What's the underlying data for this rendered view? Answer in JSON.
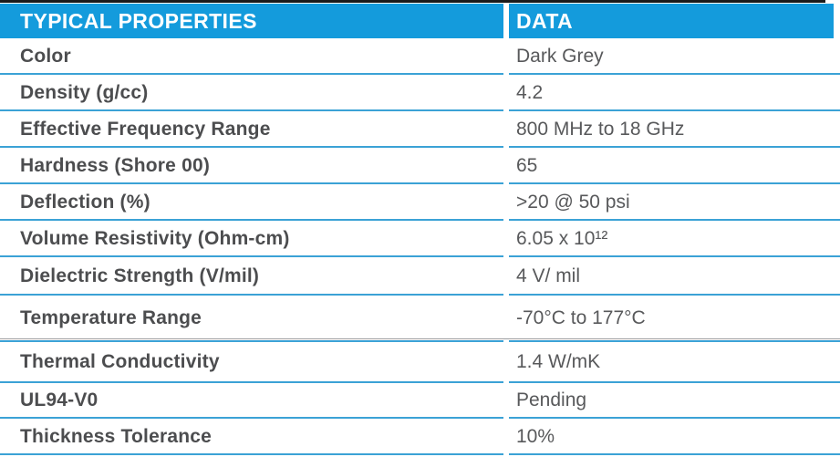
{
  "colors": {
    "header_bg": "#149bdc",
    "header_text": "#ffffff",
    "row_line": "#3ba2d6",
    "top_bar": "#1b1b1b",
    "label_text": "#4c4d4f",
    "value_text": "#58595b",
    "section_line": "#9b9da0"
  },
  "table": {
    "columns": [
      {
        "label": "TYPICAL PROPERTIES"
      },
      {
        "label": "DATA"
      }
    ],
    "rows": [
      {
        "property": "Color",
        "value": "Dark Grey"
      },
      {
        "property": "Density (g/cc)",
        "value": "4.2"
      },
      {
        "property": "Effective Frequency Range",
        "value": "800 MHz to 18 GHz"
      },
      {
        "property": "Hardness (Shore 00)",
        "value": "65"
      },
      {
        "property": "Deflection (%)",
        "value": ">20 @ 50 psi"
      },
      {
        "property": "Volume Resistivity (Ohm-cm)",
        "value": "6.05 x 10¹²"
      },
      {
        "property": "Dielectric Strength (V/mil)",
        "value": "4 V/ mil"
      },
      {
        "property": "Temperature Range",
        "value": "-70°C to 177°C"
      },
      {
        "property": "Thermal Conductivity",
        "value": "1.4 W/mK"
      },
      {
        "property": "UL94-V0",
        "value": "Pending"
      },
      {
        "property": "Thickness Tolerance",
        "value": "10%"
      }
    ]
  }
}
